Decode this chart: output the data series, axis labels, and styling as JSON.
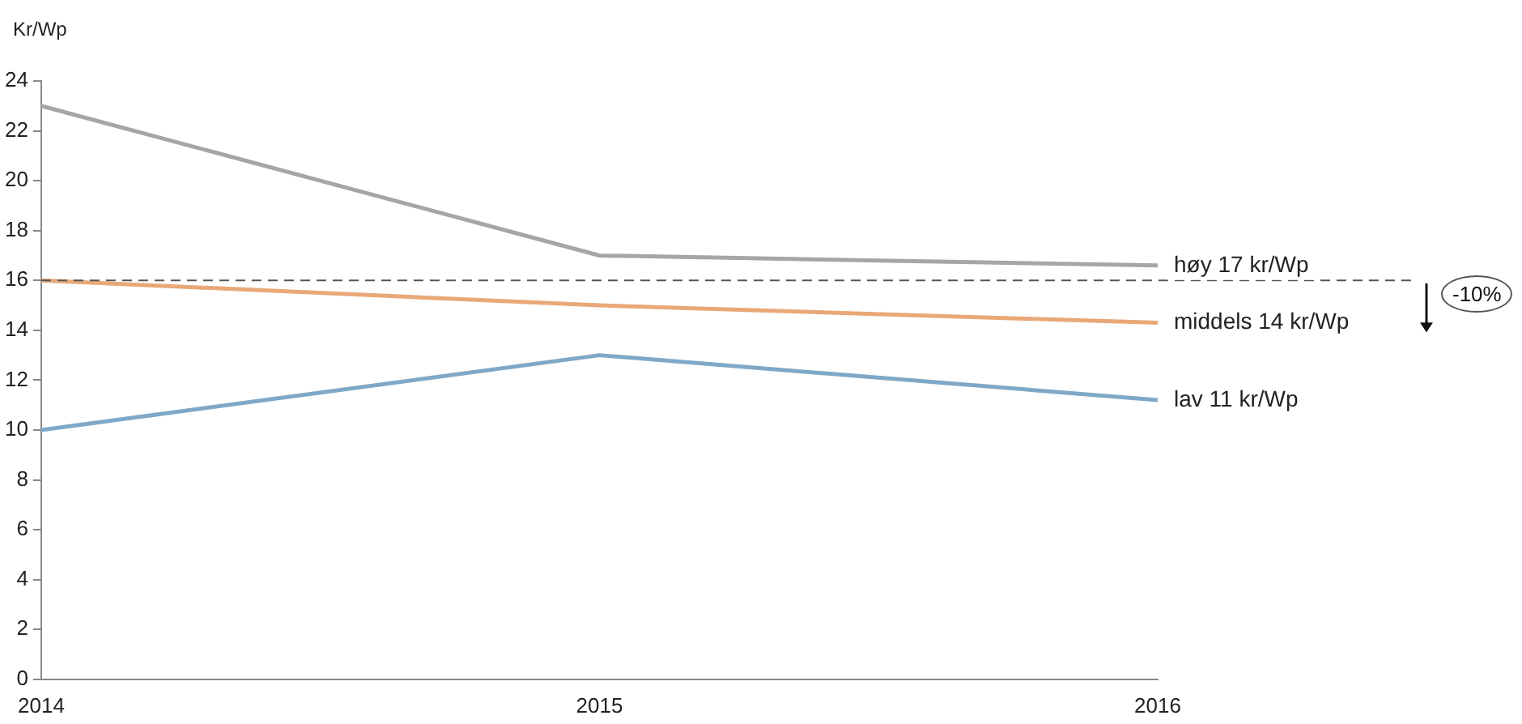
{
  "chart_data": {
    "type": "line",
    "ylabel": "Kr/Wp",
    "categories": [
      "2014",
      "2015",
      "2016"
    ],
    "series": [
      {
        "name": "høy 17 kr/Wp",
        "color": "#a6a6a6",
        "values": [
          23,
          17,
          16.6
        ]
      },
      {
        "name": "middels 14 kr/Wp",
        "color": "#e8a878",
        "values": [
          16,
          15,
          14.3
        ]
      },
      {
        "name": "lav 11 kr/Wp",
        "color": "#7fa8c8",
        "values": [
          10,
          13,
          11.2
        ]
      }
    ],
    "ylim": [
      0,
      24
    ],
    "yticks": [
      0,
      2,
      4,
      6,
      8,
      10,
      12,
      14,
      16,
      18,
      20,
      22,
      24
    ],
    "ref_lines": [
      {
        "axis": "y",
        "value": 16,
        "label": null,
        "color": "#555555",
        "line_style": "dashed"
      }
    ],
    "annotations": [
      "-10%"
    ],
    "grid": false,
    "legend": false,
    "marker": "none",
    "line_style": "solid"
  }
}
